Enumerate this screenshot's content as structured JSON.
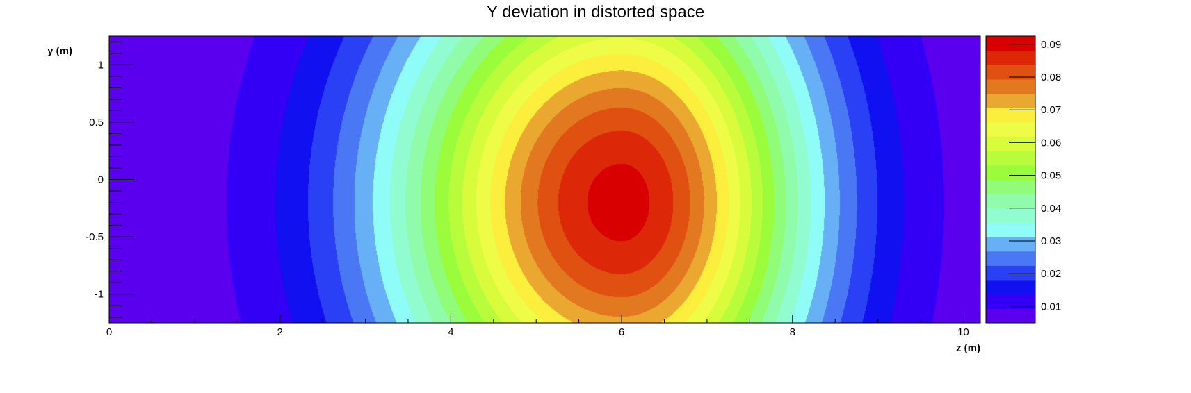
{
  "chart_data": {
    "type": "heatmap",
    "title": "Y deviation in distorted space",
    "xlabel": "z (m)",
    "ylabel": "y (m)",
    "xlim": [
      0,
      10.2
    ],
    "ylim": [
      -1.25,
      1.25
    ],
    "x_ticks": [
      0,
      2,
      4,
      6,
      8,
      10
    ],
    "x_tick_labels": [
      "0",
      "2",
      "4",
      "6",
      "8",
      "10"
    ],
    "y_ticks": [
      -1,
      -0.5,
      0,
      0.5,
      1
    ],
    "y_tick_labels": [
      "-1",
      "-0.5",
      "0",
      "0.5",
      "1"
    ],
    "z_range": [
      0.005,
      0.0925
    ],
    "z_ticks": [
      0.01,
      0.02,
      0.03,
      0.04,
      0.05,
      0.06,
      0.07,
      0.08,
      0.09
    ],
    "z_tick_labels": [
      "0.01",
      "0.02",
      "0.03",
      "0.04",
      "0.05",
      "0.06",
      "0.07",
      "0.08",
      "0.09"
    ],
    "contour_levels": 20,
    "peak": {
      "z": 6.0,
      "y": -0.2,
      "value": 0.09
    },
    "palette": [
      "#5a00ee",
      "#3300f5",
      "#1010f0",
      "#2a40f5",
      "#4a78f5",
      "#68b0f5",
      "#90fcf8",
      "#90fcd0",
      "#90fcab",
      "#90fc78",
      "#9bfc3c",
      "#b8fc3c",
      "#d8fc3c",
      "#eefc48",
      "#fcee3c",
      "#eaa830",
      "#e27820",
      "#e05010",
      "#dc2808",
      "#d80000"
    ]
  }
}
